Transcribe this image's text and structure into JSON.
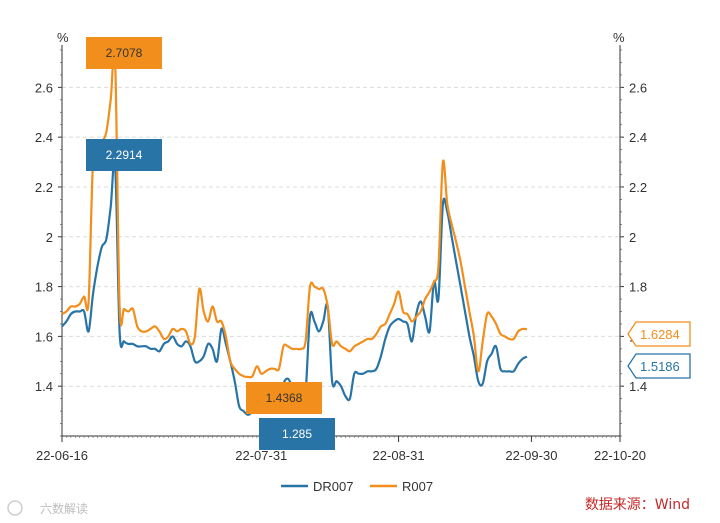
{
  "chart_data": {
    "type": "line",
    "unit_left": "%",
    "unit_right": "%",
    "x_tick_labels": [
      "22-06-16",
      "22-07-31",
      "22-08-31",
      "22-09-30",
      "22-10-20"
    ],
    "x_tick_days": [
      0,
      45,
      76,
      106,
      126
    ],
    "y_ticks": [
      1.4,
      1.6,
      1.8,
      2,
      2.2,
      2.4,
      2.6
    ],
    "y_tick_labels": [
      "1.4",
      "1.6",
      "1.8",
      "2",
      "2.2",
      "2.4",
      "2.6"
    ],
    "ylim": [
      1.2,
      2.75
    ],
    "grid": true,
    "legend_position": "bottom-center",
    "series": [
      {
        "name": "DR007",
        "color": "#2874a6",
        "points": [
          [
            0,
            1.64
          ],
          [
            1,
            1.66
          ],
          [
            2,
            1.69
          ],
          [
            3,
            1.7
          ],
          [
            4,
            1.7
          ],
          [
            5,
            1.7
          ],
          [
            6,
            1.62
          ],
          [
            7,
            1.77
          ],
          [
            8,
            1.88
          ],
          [
            9,
            1.96
          ],
          [
            10,
            1.99
          ],
          [
            11,
            2.12
          ],
          [
            12,
            2.2914
          ],
          [
            13,
            1.62
          ],
          [
            14,
            1.58
          ],
          [
            15,
            1.57
          ],
          [
            16,
            1.57
          ],
          [
            17,
            1.56
          ],
          [
            18,
            1.56
          ],
          [
            19,
            1.56
          ],
          [
            20,
            1.55
          ],
          [
            21,
            1.55
          ],
          [
            22,
            1.54
          ],
          [
            23,
            1.57
          ],
          [
            24,
            1.58
          ],
          [
            25,
            1.6
          ],
          [
            26,
            1.57
          ],
          [
            27,
            1.56
          ],
          [
            28,
            1.58
          ],
          [
            29,
            1.56
          ],
          [
            30,
            1.5
          ],
          [
            31,
            1.5
          ],
          [
            32,
            1.52
          ],
          [
            33,
            1.57
          ],
          [
            34,
            1.55
          ],
          [
            35,
            1.5
          ],
          [
            36,
            1.63
          ],
          [
            37,
            1.57
          ],
          [
            38,
            1.5
          ],
          [
            39,
            1.42
          ],
          [
            40,
            1.32
          ],
          [
            41,
            1.3
          ],
          [
            42,
            1.285
          ],
          [
            43,
            1.3
          ],
          [
            44,
            1.34
          ],
          [
            45,
            1.38
          ],
          [
            46,
            1.36
          ],
          [
            47,
            1.35
          ],
          [
            48,
            1.34
          ],
          [
            49,
            1.33
          ],
          [
            50,
            1.41
          ],
          [
            51,
            1.43
          ],
          [
            52,
            1.4
          ],
          [
            53,
            1.38
          ],
          [
            54,
            1.39
          ],
          [
            55,
            1.38
          ],
          [
            56,
            1.68
          ],
          [
            57,
            1.66
          ],
          [
            58,
            1.62
          ],
          [
            59,
            1.66
          ],
          [
            60,
            1.72
          ],
          [
            61,
            1.42
          ],
          [
            62,
            1.42
          ],
          [
            63,
            1.4
          ],
          [
            64,
            1.36
          ],
          [
            65,
            1.35
          ],
          [
            66,
            1.45
          ],
          [
            67,
            1.45
          ],
          [
            68,
            1.45
          ],
          [
            69,
            1.46
          ],
          [
            70,
            1.46
          ],
          [
            71,
            1.47
          ],
          [
            72,
            1.52
          ],
          [
            73,
            1.59
          ],
          [
            74,
            1.64
          ],
          [
            75,
            1.66
          ],
          [
            76,
            1.67
          ],
          [
            77,
            1.66
          ],
          [
            78,
            1.65
          ],
          [
            79,
            1.58
          ],
          [
            80,
            1.69
          ],
          [
            81,
            1.74
          ],
          [
            82,
            1.68
          ],
          [
            83,
            1.62
          ],
          [
            84,
            1.82
          ],
          [
            85,
            1.75
          ],
          [
            86,
            2.13
          ],
          [
            87,
            2.1
          ],
          [
            88,
            2.0
          ],
          [
            89,
            1.9
          ],
          [
            90,
            1.8
          ],
          [
            91,
            1.7
          ],
          [
            92,
            1.6
          ],
          [
            93,
            1.52
          ],
          [
            94,
            1.42
          ],
          [
            95,
            1.41
          ],
          [
            96,
            1.5
          ],
          [
            97,
            1.53
          ],
          [
            98,
            1.56
          ],
          [
            99,
            1.47
          ],
          [
            100,
            1.46
          ],
          [
            101,
            1.46
          ],
          [
            102,
            1.46
          ],
          [
            103,
            1.49
          ],
          [
            104,
            1.51
          ],
          [
            105,
            1.5186
          ]
        ]
      },
      {
        "name": "R007",
        "color": "#f28e1c",
        "points": [
          [
            0,
            1.69
          ],
          [
            1,
            1.7
          ],
          [
            2,
            1.72
          ],
          [
            3,
            1.72
          ],
          [
            4,
            1.73
          ],
          [
            5,
            1.76
          ],
          [
            6,
            1.74
          ],
          [
            7,
            2.3
          ],
          [
            8,
            2.34
          ],
          [
            9,
            2.38
          ],
          [
            10,
            2.42
          ],
          [
            11,
            2.55
          ],
          [
            12,
            2.7078
          ],
          [
            13,
            1.72
          ],
          [
            14,
            1.71
          ],
          [
            15,
            1.7
          ],
          [
            16,
            1.71
          ],
          [
            17,
            1.64
          ],
          [
            18,
            1.62
          ],
          [
            19,
            1.62
          ],
          [
            20,
            1.63
          ],
          [
            21,
            1.64
          ],
          [
            22,
            1.62
          ],
          [
            23,
            1.59
          ],
          [
            24,
            1.6
          ],
          [
            25,
            1.63
          ],
          [
            26,
            1.62
          ],
          [
            27,
            1.63
          ],
          [
            28,
            1.62
          ],
          [
            29,
            1.57
          ],
          [
            30,
            1.6
          ],
          [
            31,
            1.79
          ],
          [
            32,
            1.7
          ],
          [
            33,
            1.66
          ],
          [
            34,
            1.72
          ],
          [
            35,
            1.66
          ],
          [
            36,
            1.66
          ],
          [
            37,
            1.6
          ],
          [
            38,
            1.5
          ],
          [
            39,
            1.47
          ],
          [
            40,
            1.45
          ],
          [
            41,
            1.44
          ],
          [
            42,
            1.4368
          ],
          [
            43,
            1.44
          ],
          [
            44,
            1.48
          ],
          [
            45,
            1.45
          ],
          [
            46,
            1.46
          ],
          [
            47,
            1.47
          ],
          [
            48,
            1.47
          ],
          [
            49,
            1.47
          ],
          [
            50,
            1.56
          ],
          [
            51,
            1.56
          ],
          [
            52,
            1.55
          ],
          [
            53,
            1.55
          ],
          [
            54,
            1.55
          ],
          [
            55,
            1.58
          ],
          [
            56,
            1.8
          ],
          [
            57,
            1.8
          ],
          [
            58,
            1.79
          ],
          [
            59,
            1.79
          ],
          [
            60,
            1.72
          ],
          [
            61,
            1.57
          ],
          [
            62,
            1.58
          ],
          [
            63,
            1.56
          ],
          [
            64,
            1.55
          ],
          [
            65,
            1.54
          ],
          [
            66,
            1.56
          ],
          [
            67,
            1.57
          ],
          [
            68,
            1.58
          ],
          [
            69,
            1.59
          ],
          [
            70,
            1.59
          ],
          [
            71,
            1.61
          ],
          [
            72,
            1.64
          ],
          [
            73,
            1.65
          ],
          [
            74,
            1.69
          ],
          [
            75,
            1.73
          ],
          [
            76,
            1.78
          ],
          [
            77,
            1.7
          ],
          [
            78,
            1.69
          ],
          [
            79,
            1.66
          ],
          [
            80,
            1.68
          ],
          [
            81,
            1.7
          ],
          [
            82,
            1.75
          ],
          [
            83,
            1.78
          ],
          [
            84,
            1.82
          ],
          [
            85,
            1.88
          ],
          [
            86,
            2.3
          ],
          [
            87,
            2.13
          ],
          [
            88,
            2.05
          ],
          [
            89,
            1.98
          ],
          [
            90,
            1.9
          ],
          [
            91,
            1.8
          ],
          [
            92,
            1.7
          ],
          [
            93,
            1.6
          ],
          [
            94,
            1.46
          ],
          [
            95,
            1.58
          ],
          [
            96,
            1.69
          ],
          [
            97,
            1.68
          ],
          [
            98,
            1.65
          ],
          [
            99,
            1.61
          ],
          [
            100,
            1.6
          ],
          [
            101,
            1.59
          ],
          [
            102,
            1.59
          ],
          [
            103,
            1.62
          ],
          [
            104,
            1.63
          ],
          [
            105,
            1.6284
          ]
        ]
      }
    ],
    "annotations": [
      {
        "label": "2.7078",
        "series": "R007",
        "day": 12,
        "value": 2.7078
      },
      {
        "label": "2.2914",
        "series": "DR007",
        "day": 12,
        "value": 2.2914
      },
      {
        "label": "1.4368",
        "series": "R007",
        "day": 42,
        "value": 1.4368
      },
      {
        "label": "1.285",
        "series": "DR007",
        "day": 42,
        "value": 1.285
      }
    ],
    "end_labels": [
      {
        "label": "1.6284",
        "series": "R007"
      },
      {
        "label": "1.5186",
        "series": "DR007"
      }
    ]
  },
  "source_note": "数据来源：Wind",
  "watermark": "六数解读"
}
